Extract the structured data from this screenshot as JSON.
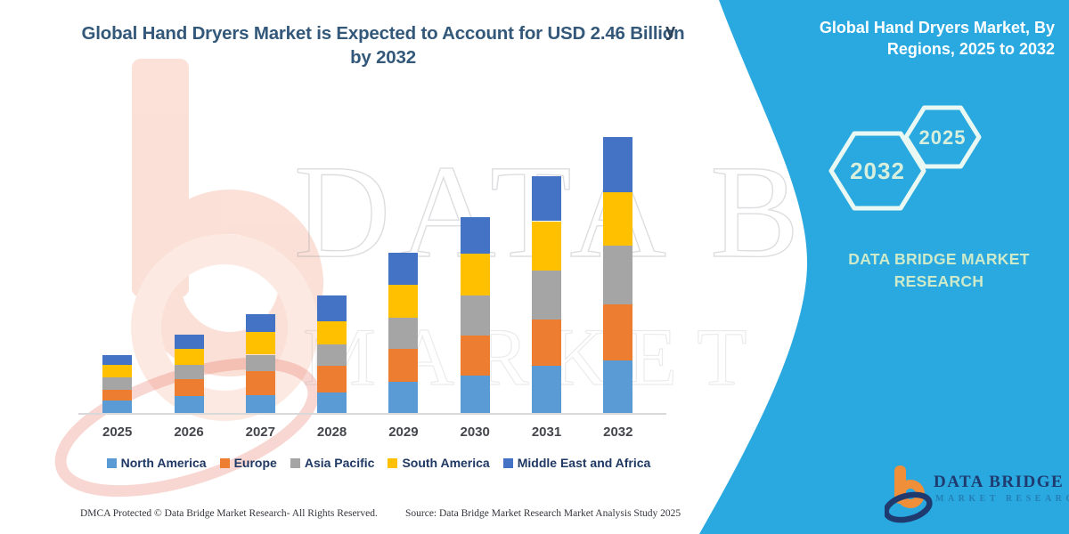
{
  "header": {
    "title": "Global Hand Dryers Market is Expected to Account for USD 2.46 Billion by 2032"
  },
  "ghost_text": "y",
  "watermark": {
    "line1": "DATA BRIDGE",
    "line2": "MARKET RESEARCH"
  },
  "side_panel": {
    "accent_color": "#29a9e0",
    "title": "Global Hand Dryers Market, By Regions, 2025 to 2032",
    "hexagon_back_label": "2032",
    "hexagon_front_label": "2025",
    "brand_text": "DATA BRIDGE MARKET RESEARCH"
  },
  "logo": {
    "name": "DATA BRIDGE",
    "subtitle": "MARKET RESEARCH"
  },
  "footer": {
    "left": "DMCA Protected © Data Bridge Market Research-  All Rights Reserved.",
    "source": "Source: Data Bridge Market Research  Market Analysis Study 2025"
  },
  "chart_data": {
    "type": "bar",
    "stacked": true,
    "title": "Global Hand Dryers Market is Expected to Account for USD 2.46 Billion by 2032",
    "unit": "USD Billion",
    "xlabel": "Year",
    "ylabel": "Market Value (USD Billion)",
    "ylim": [
      0,
      2.6
    ],
    "grid": false,
    "y_axis_visible": false,
    "legend_position": "bottom",
    "categories": [
      "2025",
      "2026",
      "2027",
      "2028",
      "2029",
      "2030",
      "2031",
      "2032"
    ],
    "series": [
      {
        "name": "North America",
        "color": "#5B9BD5",
        "values": [
          0.11,
          0.15,
          0.16,
          0.18,
          0.28,
          0.33,
          0.42,
          0.47
        ]
      },
      {
        "name": "Europe",
        "color": "#ED7D31",
        "values": [
          0.1,
          0.15,
          0.21,
          0.24,
          0.29,
          0.36,
          0.41,
          0.5
        ]
      },
      {
        "name": "Asia Pacific",
        "color": "#A5A5A5",
        "values": [
          0.11,
          0.13,
          0.15,
          0.19,
          0.28,
          0.36,
          0.44,
          0.52
        ]
      },
      {
        "name": "South America",
        "color": "#FFC000",
        "values": [
          0.11,
          0.14,
          0.2,
          0.21,
          0.29,
          0.37,
          0.44,
          0.48
        ]
      },
      {
        "name": "Middle East and Africa",
        "color": "#4472C4",
        "values": [
          0.09,
          0.13,
          0.16,
          0.23,
          0.29,
          0.33,
          0.4,
          0.49
        ]
      }
    ],
    "totals": [
      0.52,
      0.7,
      0.88,
      1.05,
      1.43,
      1.75,
      2.11,
      2.46
    ],
    "annotation": "2032 total anchored to USD 2.46 Billion from title"
  }
}
